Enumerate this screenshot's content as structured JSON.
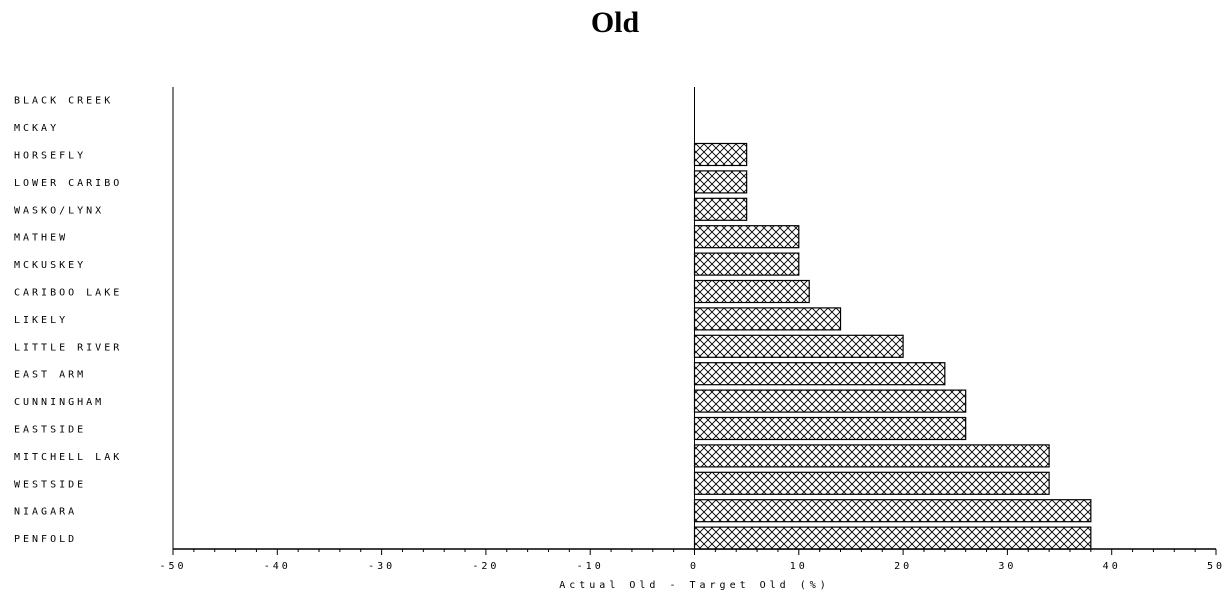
{
  "chart_data": {
    "type": "bar",
    "orientation": "horizontal",
    "title": "Old",
    "xlabel": "Actual Old - Target Old (%)",
    "ylabel": "",
    "xlim": [
      -50,
      50
    ],
    "xticks": [
      -50,
      -40,
      -30,
      -20,
      -10,
      0,
      10,
      20,
      30,
      40,
      50
    ],
    "xtick_labels": [
      "-50",
      "-40",
      "-30",
      "-20",
      "-10",
      "0",
      "10",
      "20",
      "30",
      "40",
      "50"
    ],
    "categories": [
      "BLACK CREEK",
      "MCKAY",
      "HORSEFLY",
      "LOWER CARIBO",
      "WASKO/LYNX",
      "MATHEW",
      "MCKUSKEY",
      "CARIBOO LAKE",
      "LIKELY",
      "LITTLE RIVER",
      "EAST ARM",
      "CUNNINGHAM",
      "EASTSIDE",
      "MITCHELL LAK",
      "WESTSIDE",
      "NIAGARA",
      "PENFOLD"
    ],
    "values": [
      0,
      0,
      5,
      5,
      5,
      10,
      10,
      11,
      14,
      20,
      24,
      26,
      26,
      34,
      34,
      38,
      38
    ],
    "grid": false,
    "bar_fill": "crosshatch",
    "colors": {
      "bar_stroke": "#000000",
      "hatch": "#000000",
      "background": "#ffffff"
    }
  }
}
